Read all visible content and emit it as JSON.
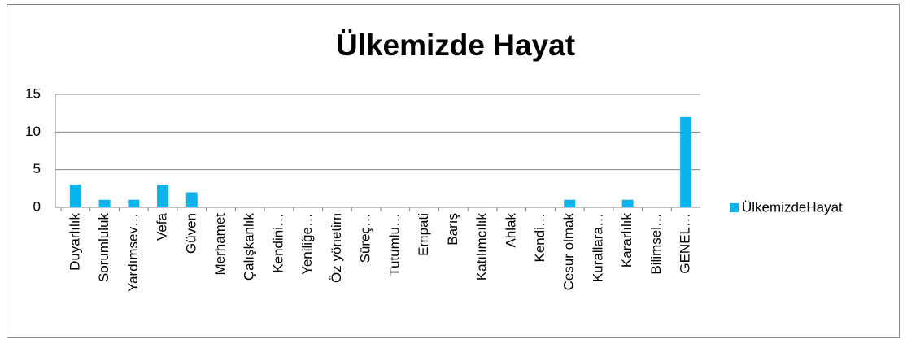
{
  "chart_data": {
    "type": "bar",
    "title": "Ülkemizde Hayat",
    "categories": [
      "Duyarlılık",
      "Sorumluluk",
      "Yardımsev…",
      "Vefa",
      "Güven",
      "Merhamet",
      "Çalışkanlık",
      "Kendini…",
      "Yeniliğe…",
      "Öz yönetim",
      "Süreç…",
      "Tutumlu…",
      "Empati",
      "Barış",
      "Katılımcılık",
      "Ahlak",
      "Kendi…",
      "Cesur olmak",
      "Kurallara…",
      "Kararlılık",
      "Bilimsel…",
      "GENEL…"
    ],
    "series": [
      {
        "name": "ÜlkemizdeHayat",
        "color": "#0cb4ee",
        "values": [
          3,
          1,
          1,
          3,
          2,
          0,
          0,
          0,
          0,
          0,
          0,
          0,
          0,
          0,
          0,
          0,
          0,
          1,
          0,
          1,
          0,
          12
        ]
      }
    ],
    "ylim": [
      0,
      15
    ],
    "yticks": [
      0,
      5,
      10,
      15
    ],
    "grid": true,
    "legend": "right"
  }
}
